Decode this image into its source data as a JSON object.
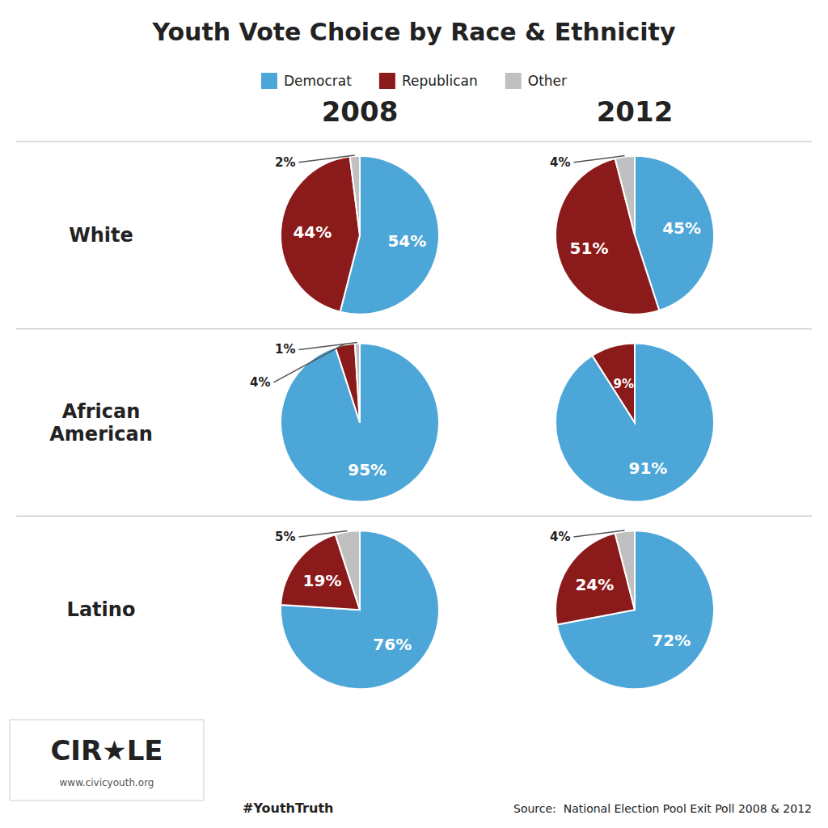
{
  "chart_data": {
    "type": "pie",
    "title": "Youth Vote Choice by Race & Ethnicity",
    "categories": [
      "Democrat",
      "Republican",
      "Other"
    ],
    "colors": [
      "#4da6d8",
      "#8b1a1a",
      "#c0c0c0"
    ],
    "legend": "top",
    "data_labels": true,
    "columns": [
      "2008",
      "2012"
    ],
    "rows": [
      {
        "label": "White",
        "values": [
          [
            54,
            44,
            2
          ],
          [
            45,
            51,
            4
          ]
        ],
        "value_labels": [
          [
            "54%",
            "44%",
            "2%"
          ],
          [
            "45%",
            "51%",
            "4%"
          ]
        ]
      },
      {
        "label": "African\nAmerican",
        "values": [
          [
            95,
            4,
            1
          ],
          [
            91,
            9,
            0
          ]
        ],
        "value_labels": [
          [
            "95%",
            "4%",
            "1%"
          ],
          [
            "91%",
            "9%",
            null
          ]
        ]
      },
      {
        "label": "Latino",
        "values": [
          [
            76,
            19,
            5
          ],
          [
            72,
            24,
            4
          ]
        ],
        "value_labels": [
          [
            "76%",
            "19%",
            "5%"
          ],
          [
            "72%",
            "24%",
            "4%"
          ]
        ]
      }
    ],
    "annotations": [
      "#YouthTruth",
      "Source:  National Election Pool Exit Poll 2008 & 2012",
      "CIR",
      "★",
      "LE",
      "www.civicyouth.org"
    ]
  }
}
